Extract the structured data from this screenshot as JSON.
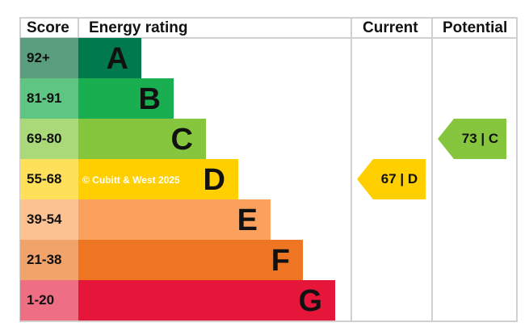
{
  "chart_data": {
    "type": "table",
    "headers": {
      "score": "Score",
      "rating": "Energy rating",
      "current": "Current",
      "potential": "Potential"
    },
    "bands": [
      {
        "score": "92+",
        "letter": "A",
        "color": "#007a4d",
        "score_color": "#5a9e7e"
      },
      {
        "score": "81-91",
        "letter": "B",
        "color": "#19ae50",
        "score_color": "#5ec582"
      },
      {
        "score": "69-80",
        "letter": "C",
        "color": "#86c63e",
        "score_color": "#aad97a"
      },
      {
        "score": "55-68",
        "letter": "D",
        "color": "#ffcf00",
        "score_color": "#ffe05a"
      },
      {
        "score": "39-54",
        "letter": "E",
        "color": "#fca15d",
        "score_color": "#fdc291"
      },
      {
        "score": "21-38",
        "letter": "F",
        "color": "#ee7623",
        "score_color": "#f2a36a"
      },
      {
        "score": "1-20",
        "letter": "G",
        "color": "#e6163a",
        "score_color": "#ee6e84"
      }
    ],
    "current": {
      "value": 67,
      "band": "D",
      "label": "67 | D",
      "color": "#ffcf00"
    },
    "potential": {
      "value": 73,
      "band": "C",
      "label": "73 | C",
      "color": "#86c63e"
    },
    "watermark": "© Cubitt & West 2025"
  }
}
